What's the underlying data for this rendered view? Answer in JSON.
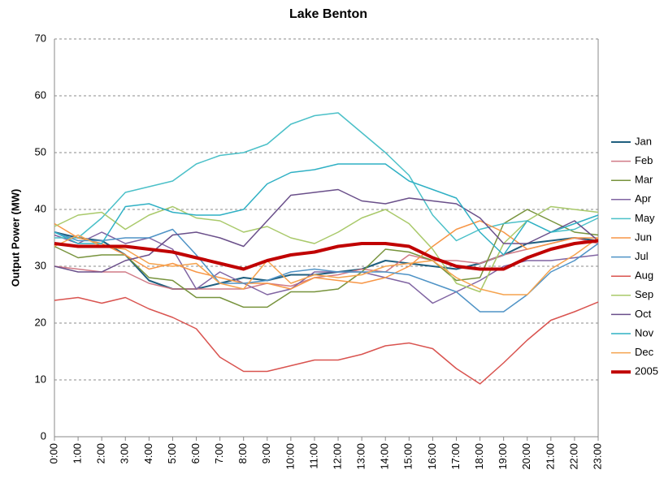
{
  "chart_data": {
    "type": "line",
    "title": "Lake Benton",
    "y_label": "Output Power (MW)",
    "categories": [
      "0:00",
      "1:00",
      "2:00",
      "3:00",
      "4:00",
      "5:00",
      "6:00",
      "7:00",
      "8:00",
      "9:00",
      "10:00",
      "11:00",
      "12:00",
      "13:00",
      "14:00",
      "15:00",
      "16:00",
      "17:00",
      "18:00",
      "19:00",
      "20:00",
      "21:00",
      "22:00",
      "23:00"
    ],
    "ylim": [
      0,
      70
    ],
    "yticks": [
      0,
      10,
      20,
      30,
      40,
      50,
      60,
      70
    ],
    "grid": true,
    "legend": "right",
    "series": [
      {
        "name": "Jan",
        "color": "#1f5f7f",
        "width": 2,
        "values": [
          36,
          35,
          34.5,
          32,
          27.5,
          26,
          26,
          27,
          28,
          27.5,
          28.5,
          28.5,
          29,
          29.5,
          31,
          30.5,
          30,
          29.5,
          30.5,
          32,
          34,
          34.5,
          35,
          34.5
        ]
      },
      {
        "name": "Feb",
        "color": "#d07a86",
        "width": 1.5,
        "values": [
          30,
          29.5,
          29,
          29,
          27,
          26,
          26,
          26,
          26,
          27,
          26.5,
          28,
          28.5,
          29.5,
          29,
          32,
          31,
          31,
          30.5,
          32,
          33,
          34,
          35,
          34
        ]
      },
      {
        "name": "Mar",
        "color": "#77933c",
        "width": 1.5,
        "values": [
          33.5,
          31.5,
          32,
          32,
          28,
          27.5,
          24.5,
          24.5,
          22.8,
          22.8,
          25.5,
          25.5,
          26,
          29,
          33,
          32.5,
          31,
          27.5,
          28,
          37.5,
          40,
          38,
          36,
          35.5
        ]
      },
      {
        "name": "Apr",
        "color": "#8064a2",
        "width": 1.5,
        "values": [
          35.5,
          34,
          36,
          34,
          35,
          33,
          26,
          29,
          27,
          25,
          26,
          29,
          29,
          29,
          28,
          27,
          23.5,
          25.5,
          27.5,
          30,
          31,
          31,
          31.5,
          32
        ]
      },
      {
        "name": "May",
        "color": "#4bc0c8",
        "width": 1.5,
        "values": [
          35,
          35,
          38.5,
          43,
          44,
          45,
          48,
          49.5,
          50,
          51.5,
          55,
          56.5,
          57,
          53.5,
          50,
          46,
          39,
          34.5,
          36.5,
          37.5,
          38,
          36,
          36.5,
          38.5
        ]
      },
      {
        "name": "Jun",
        "color": "#f79646",
        "width": 1.5,
        "values": [
          37.5,
          35,
          34,
          32,
          29.5,
          30.5,
          29,
          28,
          27,
          27,
          26,
          28,
          27.5,
          27,
          28,
          30,
          33.5,
          36.5,
          38,
          36,
          33,
          34,
          35,
          35
        ]
      },
      {
        "name": "Jul",
        "color": "#4f93c6",
        "width": 1.5,
        "values": [
          36,
          34.5,
          34.5,
          35,
          35,
          36.5,
          32,
          27,
          27,
          27.5,
          29,
          29.5,
          29,
          29,
          29,
          28.5,
          27,
          25.5,
          22,
          22,
          25,
          29,
          31,
          34
        ]
      },
      {
        "name": "Aug",
        "color": "#d9534f",
        "width": 1.5,
        "values": [
          24,
          24.5,
          23.5,
          24.5,
          22.5,
          21,
          19,
          14,
          11.5,
          11.5,
          12.5,
          13.5,
          13.5,
          14.5,
          16,
          16.5,
          15.5,
          12,
          9.3,
          13,
          17,
          20.5,
          22,
          23.7
        ]
      },
      {
        "name": "Sep",
        "color": "#a9c96a",
        "width": 1.5,
        "values": [
          37,
          39,
          39.5,
          36.5,
          39,
          40.5,
          38.5,
          38,
          36,
          37,
          35,
          34,
          36,
          38.5,
          40,
          37.5,
          33,
          27,
          25.5,
          34,
          38,
          40.5,
          40,
          39.5
        ]
      },
      {
        "name": "Oct",
        "color": "#6a4f8a",
        "width": 1.5,
        "values": [
          30,
          29,
          29,
          31,
          32,
          35.5,
          36,
          35,
          33.5,
          38,
          42.5,
          43,
          43.5,
          41.5,
          41,
          42,
          41.5,
          41,
          38.5,
          34,
          34,
          36,
          38,
          34.5
        ]
      },
      {
        "name": "Nov",
        "color": "#2fb0c4",
        "width": 1.5,
        "values": [
          36,
          34,
          34,
          40.5,
          41,
          39.5,
          39,
          39,
          40,
          44.5,
          46.5,
          47,
          48,
          48,
          48,
          45,
          43.5,
          42,
          36,
          32,
          38,
          36,
          37.5,
          39
        ]
      },
      {
        "name": "Dec",
        "color": "#f5a34e",
        "width": 1.5,
        "values": [
          33.5,
          35.5,
          33.5,
          33,
          30.5,
          30,
          30.5,
          27,
          26,
          31,
          27,
          28.5,
          28,
          28.5,
          30,
          30.5,
          31,
          28,
          26,
          25,
          25,
          29.5,
          32,
          35
        ]
      },
      {
        "name": "2005",
        "color": "#c00000",
        "width": 4,
        "values": [
          34,
          33.5,
          33.5,
          33.5,
          33,
          32.5,
          31.5,
          30.5,
          29.5,
          31,
          32,
          32.5,
          33.5,
          34,
          34,
          33.5,
          31.5,
          30,
          29.5,
          29.5,
          31.5,
          33,
          34,
          34.5
        ]
      }
    ]
  }
}
